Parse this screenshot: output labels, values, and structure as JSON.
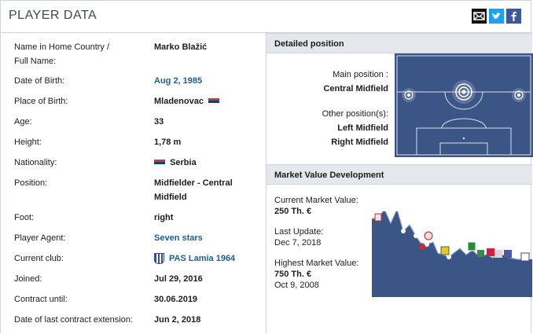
{
  "header": {
    "title": "PLAYER DATA"
  },
  "social": {
    "mail_icon": "envelope-icon",
    "twitter_icon": "twitter-bird-icon",
    "facebook_icon": "facebook-f-icon"
  },
  "details": {
    "name_label": "Name in Home Country / Full Name:",
    "name_value": "Marko Blažić",
    "dob_label": "Date of Birth:",
    "dob_value": "Aug 2, 1985",
    "pob_label": "Place of Birth:",
    "pob_value": "Mladenovac",
    "age_label": "Age:",
    "age_value": "33",
    "height_label": "Height:",
    "height_value": "1,78 m",
    "nationality_label": "Nationality:",
    "nationality_value": "Serbia",
    "position_label": "Position:",
    "position_value": "Midfielder - Central Midfield",
    "foot_label": "Foot:",
    "foot_value": "right",
    "agent_label": "Player Agent:",
    "agent_value": "Seven stars",
    "club_label": "Current club:",
    "club_value": "PAS Lamia 1964",
    "joined_label": "Joined:",
    "joined_value": "Jul 29, 2016",
    "contract_label": "Contract until:",
    "contract_value": "30.06.2019",
    "extension_label": "Date of last contract extension:",
    "extension_value": "Jun 2, 2018"
  },
  "position_panel": {
    "title": "Detailed position",
    "main_label": "Main position :",
    "main_value": "Central Midfield",
    "other_label": "Other position(s):",
    "other_values": [
      "Left Midfield",
      "Right Midfield"
    ]
  },
  "market_value": {
    "title": "Market Value Development",
    "current_label": "Current Market Value:",
    "current_value": "250 Th. €",
    "update_label": "Last Update:",
    "update_value": "Dec 7, 2018",
    "highest_label": "Highest Market Value:",
    "highest_value": "750 Th. €",
    "highest_date": "Oct 9, 2008"
  },
  "colors": {
    "link": "#1f5f8b",
    "pitch": "#3b5587",
    "chart_fill": "#3b5587",
    "section_bg": "#e4e8ed"
  }
}
